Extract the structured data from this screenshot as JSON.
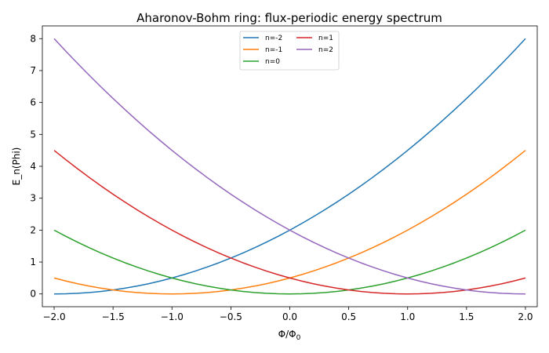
{
  "chart_data": {
    "type": "line",
    "title": "Aharonov-Bohm ring: flux-periodic energy spectrum",
    "xlabel_main": "Φ/Φ",
    "xlabel_sub": "0",
    "ylabel": "E_n(Phi)",
    "xlim": [
      -2.1,
      2.1
    ],
    "ylim": [
      -0.4,
      8.4
    ],
    "x_ticks": [
      -2.0,
      -1.5,
      -1.0,
      -0.5,
      0.0,
      0.5,
      1.0,
      1.5,
      2.0
    ],
    "x_tick_labels": [
      "−2.0",
      "−1.5",
      "−1.0",
      "−0.5",
      "0.0",
      "0.5",
      "1.0",
      "1.5",
      "2.0"
    ],
    "y_ticks": [
      0,
      1,
      2,
      3,
      4,
      5,
      6,
      7,
      8
    ],
    "y_tick_labels": [
      "0",
      "1",
      "2",
      "3",
      "4",
      "5",
      "6",
      "7",
      "8"
    ],
    "grid": false,
    "legend_position": "top-center",
    "x": [
      -2.0,
      -1.9,
      -1.8,
      -1.7,
      -1.6,
      -1.5,
      -1.4,
      -1.3,
      -1.2,
      -1.1,
      -1.0,
      -0.9,
      -0.8,
      -0.7,
      -0.6,
      -0.5,
      -0.4,
      -0.3,
      -0.2,
      -0.1,
      0.0,
      0.1,
      0.2,
      0.3,
      0.4,
      0.5,
      0.6,
      0.7,
      0.8,
      0.9,
      1.0,
      1.1,
      1.2,
      1.3,
      1.4,
      1.5,
      1.6,
      1.7,
      1.8,
      1.9,
      2.0
    ],
    "series": [
      {
        "name": "n=-2",
        "color": "#1f77b4",
        "values": [
          0.0,
          0.005,
          0.02,
          0.045,
          0.08,
          0.125,
          0.18,
          0.245,
          0.32,
          0.405,
          0.5,
          0.605,
          0.72,
          0.845,
          0.98,
          1.125,
          1.28,
          1.445,
          1.62,
          1.805,
          2.0,
          2.205,
          2.42,
          2.645,
          2.88,
          3.125,
          3.38,
          3.645,
          3.92,
          4.205,
          4.5,
          4.805,
          5.12,
          5.445,
          5.78,
          6.125,
          6.48,
          6.845,
          7.22,
          7.605,
          8.0
        ]
      },
      {
        "name": "n=-1",
        "color": "#ff7f0e",
        "values": [
          0.5,
          0.405,
          0.32,
          0.245,
          0.18,
          0.125,
          0.08,
          0.045,
          0.02,
          0.005,
          0.0,
          0.005,
          0.02,
          0.045,
          0.08,
          0.125,
          0.18,
          0.245,
          0.32,
          0.405,
          0.5,
          0.605,
          0.72,
          0.845,
          0.98,
          1.125,
          1.28,
          1.445,
          1.62,
          1.805,
          2.0,
          2.205,
          2.42,
          2.645,
          2.88,
          3.125,
          3.38,
          3.645,
          3.92,
          4.205,
          4.5
        ]
      },
      {
        "name": "n=0",
        "color": "#2ca02c",
        "values": [
          2.0,
          1.805,
          1.62,
          1.445,
          1.28,
          1.125,
          0.98,
          0.845,
          0.72,
          0.605,
          0.5,
          0.405,
          0.32,
          0.245,
          0.18,
          0.125,
          0.08,
          0.045,
          0.02,
          0.005,
          0.0,
          0.005,
          0.02,
          0.045,
          0.08,
          0.125,
          0.18,
          0.245,
          0.32,
          0.405,
          0.5,
          0.605,
          0.72,
          0.845,
          0.98,
          1.125,
          1.28,
          1.445,
          1.62,
          1.805,
          2.0
        ]
      },
      {
        "name": "n=1",
        "color": "#d62728",
        "values": [
          4.5,
          4.205,
          3.92,
          3.645,
          3.38,
          3.125,
          2.88,
          2.645,
          2.42,
          2.205,
          2.0,
          1.805,
          1.62,
          1.445,
          1.28,
          1.125,
          0.98,
          0.845,
          0.72,
          0.605,
          0.5,
          0.405,
          0.32,
          0.245,
          0.18,
          0.125,
          0.08,
          0.045,
          0.02,
          0.005,
          0.0,
          0.005,
          0.02,
          0.045,
          0.08,
          0.125,
          0.18,
          0.245,
          0.32,
          0.405,
          0.5
        ]
      },
      {
        "name": "n=2",
        "color": "#9467bd",
        "values": [
          8.0,
          7.605,
          7.22,
          6.845,
          6.48,
          6.125,
          5.78,
          5.445,
          5.12,
          4.805,
          4.5,
          4.205,
          3.92,
          3.645,
          3.38,
          3.125,
          2.88,
          2.645,
          2.42,
          2.205,
          2.0,
          1.805,
          1.62,
          1.445,
          1.28,
          1.125,
          0.98,
          0.845,
          0.72,
          0.605,
          0.5,
          0.405,
          0.32,
          0.245,
          0.18,
          0.125,
          0.08,
          0.045,
          0.02,
          0.005,
          0.0
        ]
      }
    ]
  }
}
